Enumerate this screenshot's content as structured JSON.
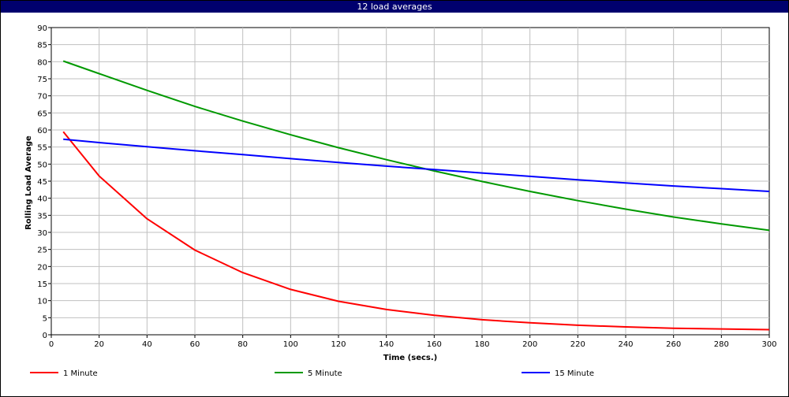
{
  "window": {
    "title": "12 load averages"
  },
  "chart_data": {
    "type": "line",
    "title": "12 load averages",
    "xlabel": "Time (secs.)",
    "ylabel": "Rolling Load Average",
    "xlim": [
      0,
      300
    ],
    "ylim": [
      0,
      90
    ],
    "xticks": [
      0,
      20,
      40,
      60,
      80,
      100,
      120,
      140,
      160,
      180,
      200,
      220,
      240,
      260,
      280,
      300
    ],
    "yticks": [
      0,
      5,
      10,
      15,
      20,
      25,
      30,
      35,
      40,
      45,
      50,
      55,
      60,
      65,
      70,
      75,
      80,
      85,
      90
    ],
    "grid": true,
    "legend_position": "bottom",
    "x": [
      5,
      20,
      40,
      60,
      80,
      100,
      120,
      140,
      160,
      180,
      200,
      220,
      240,
      260,
      280,
      300
    ],
    "series": [
      {
        "name": "1 Minute",
        "color": "#ff0000",
        "values": [
          59.5,
          46.5,
          34.0,
          24.8,
          18.2,
          13.3,
          9.8,
          7.4,
          5.7,
          4.4,
          3.5,
          2.8,
          2.3,
          1.9,
          1.7,
          1.5
        ]
      },
      {
        "name": "5 Minute",
        "color": "#009900",
        "values": [
          80.2,
          76.5,
          71.6,
          66.9,
          62.6,
          58.6,
          54.8,
          51.3,
          48.0,
          44.9,
          42.0,
          39.3,
          36.8,
          34.5,
          32.5,
          30.6
        ]
      },
      {
        "name": "15 Minute",
        "color": "#0000ff",
        "values": [
          57.3,
          56.3,
          55.1,
          53.9,
          52.8,
          51.6,
          50.5,
          49.4,
          48.4,
          47.4,
          46.4,
          45.4,
          44.5,
          43.6,
          42.8,
          42.0
        ]
      }
    ]
  }
}
